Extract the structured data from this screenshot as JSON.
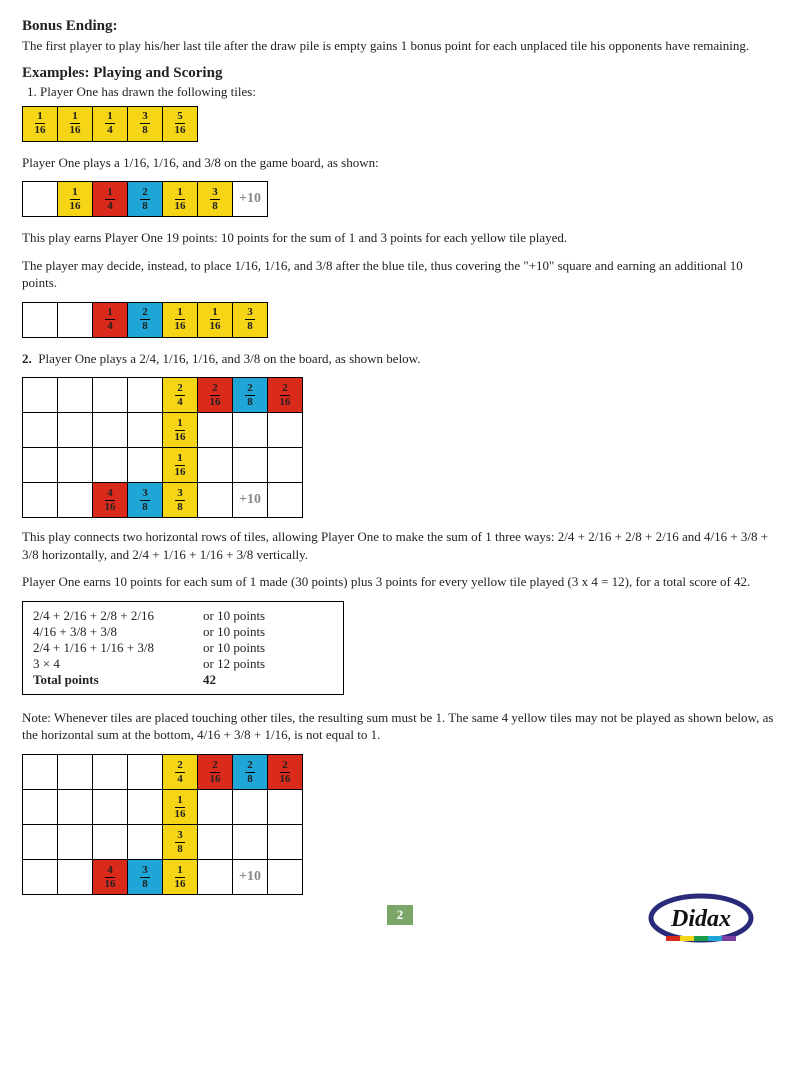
{
  "heading1": "Bonus Ending:",
  "para1": "The first player to play his/her last tile after the draw pile is empty gains 1 bonus point for each unplaced tile his opponents have remaining.",
  "heading2": "Examples: Playing and Scoring",
  "ex1_intro": "Player One has drawn the following tiles:",
  "row1": [
    {
      "n": "1",
      "d": "16",
      "c": "yellow"
    },
    {
      "n": "1",
      "d": "16",
      "c": "yellow"
    },
    {
      "n": "1",
      "d": "4",
      "c": "yellow"
    },
    {
      "n": "3",
      "d": "8",
      "c": "yellow"
    },
    {
      "n": "5",
      "d": "16",
      "c": "yellow"
    }
  ],
  "para2": "Player One plays a 1/16, 1/16, and 3/8 on the game board, as shown:",
  "row2": [
    {
      "c": "white"
    },
    {
      "n": "1",
      "d": "16",
      "c": "yellow"
    },
    {
      "n": "1",
      "d": "4",
      "c": "red"
    },
    {
      "n": "2",
      "d": "8",
      "c": "blue"
    },
    {
      "n": "1",
      "d": "16",
      "c": "yellow"
    },
    {
      "n": "3",
      "d": "8",
      "c": "yellow"
    },
    {
      "t": "+10",
      "c": "white",
      "bonus": true
    }
  ],
  "para3": "This play earns Player One 19 points: 10 points for the sum of 1 and 3 points for each yellow tile played.",
  "para4": "The player may decide, instead, to place 1/16, 1/16, and 3/8 after the blue tile, thus covering the \"+10\" square and earning an additional 10 points.",
  "row3": [
    {
      "c": "white"
    },
    {
      "c": "white"
    },
    {
      "n": "1",
      "d": "4",
      "c": "red"
    },
    {
      "n": "2",
      "d": "8",
      "c": "blue"
    },
    {
      "n": "1",
      "d": "16",
      "c": "yellow"
    },
    {
      "n": "1",
      "d": "16",
      "c": "yellow"
    },
    {
      "n": "3",
      "d": "8",
      "c": "yellow"
    }
  ],
  "ex2_intro": "Player One plays a 2/4, 1/16, 1/16, and 3/8 on the board, as shown below.",
  "grid1": [
    [
      {
        "c": "white"
      },
      {
        "c": "white"
      },
      {
        "c": "white"
      },
      {
        "c": "white"
      },
      {
        "n": "2",
        "d": "4",
        "c": "yellow"
      },
      {
        "n": "2",
        "d": "16",
        "c": "red"
      },
      {
        "n": "2",
        "d": "8",
        "c": "blue"
      },
      {
        "n": "2",
        "d": "16",
        "c": "red"
      }
    ],
    [
      {
        "c": "white"
      },
      {
        "c": "white"
      },
      {
        "c": "white"
      },
      {
        "c": "white"
      },
      {
        "n": "1",
        "d": "16",
        "c": "yellow"
      },
      {
        "c": "white"
      },
      {
        "c": "white"
      },
      {
        "c": "white"
      }
    ],
    [
      {
        "c": "white"
      },
      {
        "c": "white"
      },
      {
        "c": "white"
      },
      {
        "c": "white"
      },
      {
        "n": "1",
        "d": "16",
        "c": "yellow"
      },
      {
        "c": "white"
      },
      {
        "c": "white"
      },
      {
        "c": "white"
      }
    ],
    [
      {
        "c": "white"
      },
      {
        "c": "white"
      },
      {
        "n": "4",
        "d": "16",
        "c": "red"
      },
      {
        "n": "3",
        "d": "8",
        "c": "blue"
      },
      {
        "n": "3",
        "d": "8",
        "c": "yellow"
      },
      {
        "c": "white"
      },
      {
        "t": "+10",
        "c": "white",
        "bonus": true
      },
      {
        "c": "white"
      }
    ]
  ],
  "para5": "This play connects two horizontal rows of tiles, allowing Player One to make the sum of 1 three ways: 2/4 + 2/16 + 2/8 + 2/16 and 4/16 + 3/8 + 3/8 horizontally, and 2/4 + 1/16 + 1/16 + 3/8 vertically.",
  "para6": "Player One earns 10 points for each sum of 1 made (30 points) plus 3 points for every yellow tile played (3 x 4 = 12), for a total score of 42.",
  "scores": [
    {
      "l": "2/4 + 2/16 + 2/8 + 2/16",
      "r": "or 10 points"
    },
    {
      "l": "4/16 + 3/8 + 3/8",
      "r": "or 10 points"
    },
    {
      "l": "2/4 + 1/16 + 1/16 + 3/8",
      "r": "or 10 points"
    },
    {
      "l": "3 × 4",
      "r": "or 12 points"
    },
    {
      "l": "Total points",
      "r": "42"
    }
  ],
  "para7": "Note: Whenever tiles are placed touching other tiles, the resulting sum must be 1. The same 4 yellow tiles may not be played as shown below, as the horizontal sum at the bottom, 4/16 + 3/8 + 1/16, is not equal to 1.",
  "grid2": [
    [
      {
        "c": "white"
      },
      {
        "c": "white"
      },
      {
        "c": "white"
      },
      {
        "c": "white"
      },
      {
        "n": "2",
        "d": "4",
        "c": "yellow"
      },
      {
        "n": "2",
        "d": "16",
        "c": "red"
      },
      {
        "n": "2",
        "d": "8",
        "c": "blue"
      },
      {
        "n": "2",
        "d": "16",
        "c": "red"
      }
    ],
    [
      {
        "c": "white"
      },
      {
        "c": "white"
      },
      {
        "c": "white"
      },
      {
        "c": "white"
      },
      {
        "n": "1",
        "d": "16",
        "c": "yellow"
      },
      {
        "c": "white"
      },
      {
        "c": "white"
      },
      {
        "c": "white"
      }
    ],
    [
      {
        "c": "white"
      },
      {
        "c": "white"
      },
      {
        "c": "white"
      },
      {
        "c": "white"
      },
      {
        "n": "3",
        "d": "8",
        "c": "yellow"
      },
      {
        "c": "white"
      },
      {
        "c": "white"
      },
      {
        "c": "white"
      }
    ],
    [
      {
        "c": "white"
      },
      {
        "c": "white"
      },
      {
        "n": "4",
        "d": "16",
        "c": "red"
      },
      {
        "n": "3",
        "d": "8",
        "c": "blue"
      },
      {
        "n": "1",
        "d": "16",
        "c": "yellow"
      },
      {
        "c": "white"
      },
      {
        "t": "+10",
        "c": "white",
        "bonus": true
      },
      {
        "c": "white"
      }
    ]
  ],
  "pagenum": "2",
  "logo_text": "Didax"
}
